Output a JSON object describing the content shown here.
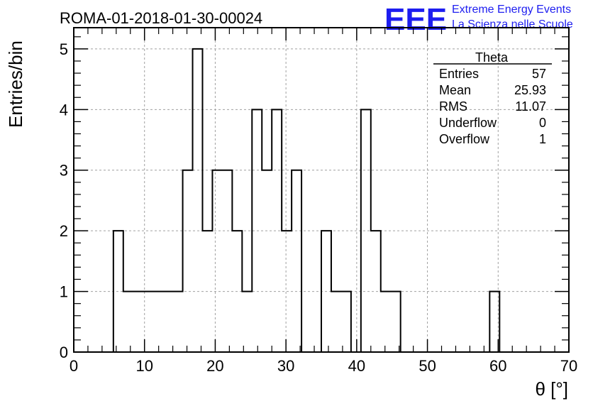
{
  "header": {
    "run_title": "ROMA-01-2018-01-30-00024",
    "brand_logo": "EEE",
    "brand_line1": "Extreme Energy Events",
    "brand_line2": "La Scienza nelle Scuole"
  },
  "stats_box": {
    "title": "Theta",
    "rows": [
      {
        "label": "Entries",
        "value": "57"
      },
      {
        "label": "Mean",
        "value": "25.93"
      },
      {
        "label": "RMS",
        "value": "11.07"
      },
      {
        "label": "Underflow",
        "value": "0"
      },
      {
        "label": "Overflow",
        "value": "1"
      }
    ]
  },
  "chart_data": {
    "type": "histogram",
    "title": "ROMA-01-2018-01-30-00024",
    "xlabel": "θ [°]",
    "ylabel": "Entries/bin",
    "xlim": [
      0,
      70
    ],
    "ylim": [
      0,
      5.35
    ],
    "bin_width": 1.4,
    "bin_edges_start": 0,
    "x_ticks": [
      0,
      10,
      20,
      30,
      40,
      50,
      60,
      70
    ],
    "y_ticks": [
      0,
      1,
      2,
      3,
      4,
      5
    ],
    "x_tick_labels": [
      "0",
      "10",
      "20",
      "30",
      "40",
      "50",
      "60",
      "70"
    ],
    "y_tick_labels": [
      "0",
      "1",
      "2",
      "3",
      "4",
      "5"
    ],
    "grid": true,
    "series": [
      {
        "values": [
          0,
          0,
          0,
          0,
          2,
          1,
          1,
          1,
          1,
          1,
          1,
          3,
          5,
          2,
          3,
          3,
          2,
          1,
          4,
          3,
          4,
          2,
          3,
          0,
          0,
          2,
          1,
          1,
          0,
          4,
          2,
          1,
          1,
          0,
          0,
          0,
          0,
          0,
          0,
          0,
          0,
          0,
          1,
          0,
          0,
          0,
          0,
          0,
          0,
          0
        ]
      }
    ],
    "colors": {
      "line": "#000000",
      "grid": "#a0a0a0",
      "brand": "#1d1df0"
    }
  }
}
